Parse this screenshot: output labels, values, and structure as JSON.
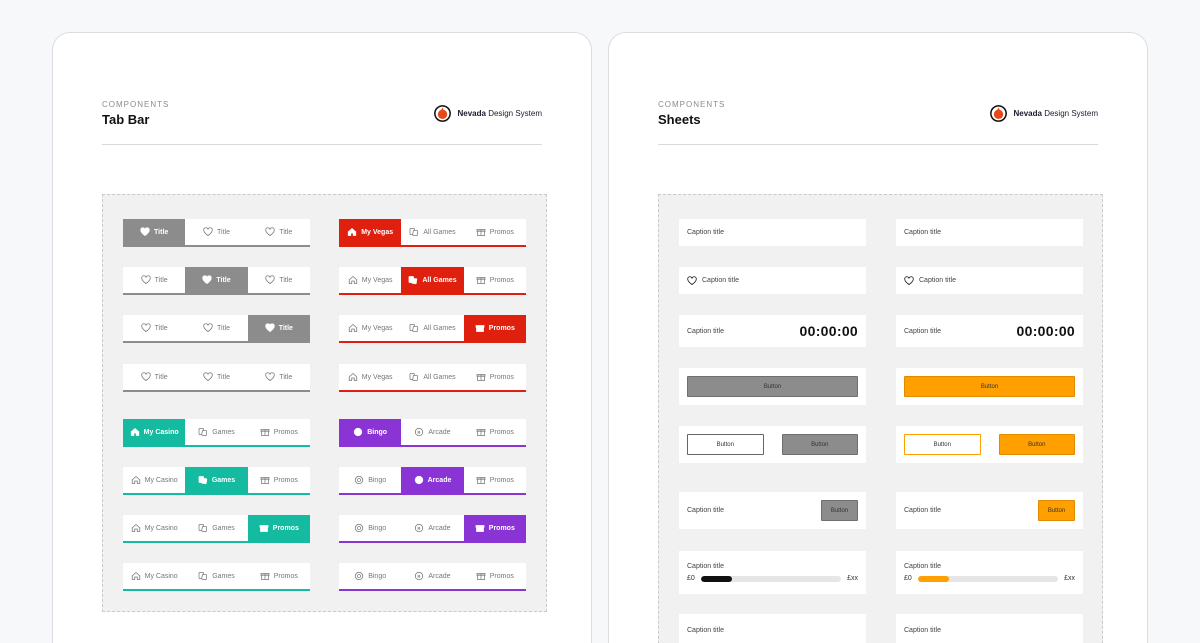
{
  "cards": [
    {
      "kicker": "COMPONENTS",
      "title": "Tab Bar",
      "brand_bold": "Nevada",
      "brand_rest": " Design System"
    },
    {
      "kicker": "COMPONENTS",
      "title": "Sheets",
      "brand_bold": "Nevada",
      "brand_rest": " Design System"
    }
  ],
  "colors": {
    "grey_active": "#8c8c8c",
    "grey_line": "#8c8c8c",
    "red": "#e0200f",
    "teal": "#15bba0",
    "purple": "#8a34d6",
    "orange": "#ff9f00",
    "black": "#111111"
  },
  "tabbars": {
    "grey": {
      "tabs": [
        "Title",
        "Title",
        "Title"
      ],
      "icons": [
        "heart-icon",
        "heart-icon",
        "heart-icon"
      ]
    },
    "red": {
      "tabs": [
        "My Vegas",
        "All Games",
        "Promos"
      ],
      "icons": [
        "home-icon",
        "games-icon",
        "gift-icon"
      ]
    },
    "teal": {
      "tabs": [
        "My Casino",
        "Games",
        "Promos"
      ],
      "icons": [
        "home-icon",
        "games-icon",
        "gift-icon"
      ]
    },
    "purple": {
      "tabs": [
        "Bingo",
        "Arcade",
        "Promos"
      ],
      "icons": [
        "bingo-icon",
        "arcade-icon",
        "gift-icon"
      ]
    }
  },
  "sheets": {
    "caption": "Caption title",
    "timer": "00:00:00",
    "button": "Button",
    "progress_start": "£0",
    "progress_end": "£xx",
    "progress_value": 0.22
  }
}
